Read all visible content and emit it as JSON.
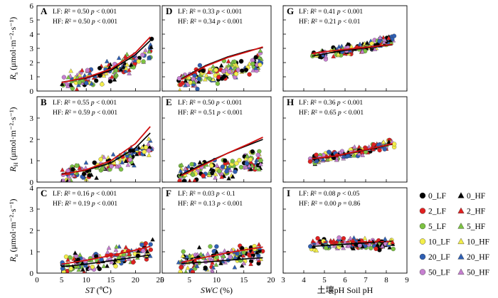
{
  "chart_data": {
    "type": "scatter",
    "layout": {
      "rows": 3,
      "cols": 3
    },
    "row_labels": [
      {
        "symbol": "R",
        "subscript": "s",
        "unit": "(μmol·m⁻²·s⁻¹)",
        "ylim": [
          0,
          6
        ],
        "yticks": [
          0,
          1,
          2,
          3,
          4,
          5,
          6
        ],
        "ytick_labels": [
          "0",
          "1",
          "2",
          "3",
          "4",
          "5",
          "6"
        ]
      },
      {
        "symbol": "R",
        "subscript": "H",
        "unit": "(μmol·m⁻²·s⁻¹)",
        "ylim": [
          0,
          4
        ],
        "yticks": [
          0,
          1,
          2,
          3,
          4
        ],
        "ytick_labels": [
          "0",
          "1",
          "2",
          "3",
          ""
        ]
      },
      {
        "symbol": "R",
        "subscript": "a",
        "unit": "(μmol·m⁻²·s⁻¹)",
        "ylim": [
          0,
          4
        ],
        "yticks": [
          0,
          1,
          2,
          3,
          4
        ],
        "ytick_labels": [
          "0",
          "1",
          "2",
          "3",
          "4"
        ]
      }
    ],
    "columns": [
      {
        "xlabel_main": "ST",
        "xlabel_suffix": " (℃)",
        "xlim": [
          0,
          25
        ],
        "xticks": [
          0,
          5,
          10,
          15,
          20,
          25
        ]
      },
      {
        "xlabel_main": "SWC",
        "xlabel_suffix": " (%)",
        "xlim": [
          0,
          20
        ],
        "xticks": [
          0,
          5,
          10,
          15,
          20
        ]
      },
      {
        "xlabel_main": "",
        "xlabel_suffix": "土壤pH Soil pH",
        "xlim": [
          3,
          9
        ],
        "xticks": [
          3,
          4,
          5,
          6,
          7,
          8,
          9
        ]
      }
    ],
    "panels": [
      {
        "id": "A",
        "row": 0,
        "col": 0,
        "lf": {
          "prefix": "LF: ",
          "r2": "R² = 0.50",
          "p": "p < 0.001"
        },
        "hf": {
          "prefix": "HF: ",
          "r2": "R² = 0.50",
          "p": "p < 0.001"
        },
        "fits": [
          {
            "x": [
              5,
              10,
              15,
              20,
              23
            ],
            "y": [
              0.62,
              0.9,
              1.45,
              2.55,
              3.55
            ],
            "color": "#000000"
          },
          {
            "x": [
              5,
              10,
              15,
              20,
              23
            ],
            "y": [
              0.6,
              0.95,
              1.55,
              2.7,
              3.8
            ],
            "color": "#d01010"
          }
        ],
        "points": {
          "x_range": [
            5,
            23.5
          ],
          "y_base": 0.55,
          "y_exp": 0.09,
          "noise": 1.1
        }
      },
      {
        "id": "D",
        "row": 0,
        "col": 1,
        "lf": {
          "prefix": "LF: ",
          "r2": "R² = 0.33",
          "p": "p < 0.001"
        },
        "hf": {
          "prefix": "HF: ",
          "r2": "R² = 0.34",
          "p": "p < 0.001"
        },
        "fits": [
          {
            "x": [
              3.5,
              8,
              12,
              16,
              18.5
            ],
            "y": [
              0.85,
              1.8,
              2.4,
              2.85,
              3.05
            ],
            "color": "#000000"
          },
          {
            "x": [
              3.5,
              8,
              12,
              16,
              18.5
            ],
            "y": [
              0.8,
              1.75,
              2.35,
              2.8,
              3.1
            ],
            "color": "#d01010"
          }
        ],
        "points": {
          "x_range": [
            3,
            18.5
          ],
          "y_base": 0.7,
          "y_exp": 0.07,
          "noise": 1.2
        }
      },
      {
        "id": "G",
        "row": 0,
        "col": 2,
        "lf": {
          "prefix": "LF: ",
          "r2": "R² = 0.41",
          "p": "p < 0.001"
        },
        "hf": {
          "prefix": "HF: ",
          "r2": "R² = 0.21",
          "p": "p < 0.01"
        },
        "fits": [
          {
            "x": [
              4.4,
              5.5,
              6.5,
              7.5,
              8.3
            ],
            "y": [
              2.45,
              2.75,
              2.95,
              3.1,
              3.25
            ],
            "color": "#000000"
          },
          {
            "x": [
              4.4,
              5.5,
              6.5,
              7.5,
              8.3
            ],
            "y": [
              2.65,
              2.85,
              3.0,
              3.15,
              3.28
            ],
            "color": "#d01010"
          }
        ],
        "points": {
          "x_range": [
            4.3,
            8.4
          ],
          "y_base": 2.4,
          "y_exp": 0.1,
          "noise": 0.6
        }
      },
      {
        "id": "B",
        "row": 1,
        "col": 0,
        "lf": {
          "prefix": "LF: ",
          "r2": "R² = 0.55",
          "p": "p < 0.001"
        },
        "hf": {
          "prefix": "HF: ",
          "r2": "R² = 0.59",
          "p": "p < 0.001"
        },
        "fits": [
          {
            "x": [
              5,
              10,
              15,
              20,
              23
            ],
            "y": [
              0.38,
              0.55,
              0.9,
              1.6,
              2.3
            ],
            "color": "#000000"
          },
          {
            "x": [
              5,
              10,
              15,
              20,
              23
            ],
            "y": [
              0.35,
              0.58,
              1.0,
              1.8,
              2.6
            ],
            "color": "#d01010"
          }
        ],
        "points": {
          "x_range": [
            5,
            23.5
          ],
          "y_base": 0.3,
          "y_exp": 0.095,
          "noise": 0.7
        }
      },
      {
        "id": "E",
        "row": 1,
        "col": 1,
        "lf": {
          "prefix": "LF: ",
          "r2": "R² = 0.50",
          "p": "p < 0.001"
        },
        "hf": {
          "prefix": "HF: ",
          "r2": "R² = 0.51",
          "p": "p < 0.001"
        },
        "fits": [
          {
            "x": [
              3.5,
              8,
              12,
              16,
              18.5
            ],
            "y": [
              0.35,
              0.9,
              1.35,
              1.75,
              2.0
            ],
            "color": "#000000"
          },
          {
            "x": [
              3.5,
              8,
              12,
              16,
              18.5
            ],
            "y": [
              0.3,
              0.85,
              1.35,
              1.8,
              2.1
            ],
            "color": "#d01010"
          }
        ],
        "points": {
          "x_range": [
            3,
            18.5
          ],
          "y_base": 0.3,
          "y_exp": 0.08,
          "noise": 0.8
        }
      },
      {
        "id": "H",
        "row": 1,
        "col": 2,
        "lf": {
          "prefix": "LF: ",
          "r2": "R² = 0.36",
          "p": "p < 0.001"
        },
        "hf": {
          "prefix": "HF: ",
          "r2": "R² = 0.65",
          "p": "p < 0.001"
        },
        "fits": [
          {
            "x": [
              4.4,
              5.5,
              6.5,
              7.5,
              8.3
            ],
            "y": [
              1.08,
              1.2,
              1.4,
              1.6,
              1.78
            ],
            "color": "#000000"
          },
          {
            "x": [
              4.4,
              5.5,
              6.5,
              7.5,
              8.3
            ],
            "y": [
              1.1,
              1.22,
              1.42,
              1.62,
              1.8
            ],
            "color": "#d01010"
          }
        ],
        "points": {
          "x_range": [
            4.3,
            8.4
          ],
          "y_base": 1.0,
          "y_exp": 0.15,
          "noise": 0.35
        }
      },
      {
        "id": "C",
        "row": 2,
        "col": 0,
        "lf": {
          "prefix": "LF: ",
          "r2": "R² = 0.16",
          "p": "p < 0.001"
        },
        "hf": {
          "prefix": "HF: ",
          "r2": "R² = 0.19",
          "p": "p < 0.001"
        },
        "fits": [
          {
            "x": [
              5,
              10,
              15,
              20,
              23
            ],
            "y": [
              0.3,
              0.42,
              0.58,
              0.75,
              0.85
            ],
            "color": "#000000"
          },
          {
            "x": [
              5,
              10,
              15,
              20,
              23
            ],
            "y": [
              0.42,
              0.6,
              0.82,
              1.08,
              1.25
            ],
            "color": "#d01010"
          }
        ],
        "points": {
          "x_range": [
            5,
            23.5
          ],
          "y_base": 0.35,
          "y_exp": 0.06,
          "noise": 0.8
        }
      },
      {
        "id": "F",
        "row": 2,
        "col": 1,
        "lf": {
          "prefix": "LF: ",
          "r2": "R² = 0.03",
          "p": "p < 0.1"
        },
        "hf": {
          "prefix": "HF: ",
          "r2": "R² = 0.13",
          "p": "p < 0.001"
        },
        "fits": [
          {
            "x": [
              3.5,
              8,
              12,
              16,
              18.5
            ],
            "y": [
              0.45,
              0.52,
              0.6,
              0.68,
              0.72
            ],
            "color": "#000000"
          },
          {
            "x": [
              3.5,
              8,
              12,
              16,
              18.5
            ],
            "y": [
              0.5,
              0.75,
              0.95,
              1.12,
              1.22
            ],
            "color": "#d01010"
          }
        ],
        "points": {
          "x_range": [
            3,
            18.5
          ],
          "y_base": 0.45,
          "y_exp": 0.05,
          "noise": 0.9
        }
      },
      {
        "id": "I",
        "row": 2,
        "col": 2,
        "lf": {
          "prefix": "LF: ",
          "r2": "R² = 0.08",
          "p": "p < 0.05"
        },
        "hf": {
          "prefix": "HF: ",
          "r2": "R² = 0.00",
          "p": "p = 0.86"
        },
        "fits": [
          {
            "x": [
              4.4,
              8.3
            ],
            "y": [
              1.25,
              1.5
            ],
            "color": "#000000"
          },
          {
            "x": [
              4.4,
              8.3
            ],
            "y": [
              1.45,
              1.48
            ],
            "color": "#d01010",
            "dashed": true
          }
        ],
        "points": {
          "x_range": [
            4.3,
            8.4
          ],
          "y_base": 1.35,
          "y_exp": 0.0,
          "noise": 0.45
        }
      }
    ],
    "legend": {
      "placement": "right",
      "entries": [
        {
          "label": "0_LF",
          "marker": "circle",
          "color": "#000000"
        },
        {
          "label": "0_HF",
          "marker": "triangle",
          "color": "#000000"
        },
        {
          "label": "2_LF",
          "marker": "circle",
          "color": "#e02020"
        },
        {
          "label": "2_HF",
          "marker": "triangle",
          "color": "#e02020"
        },
        {
          "label": "5_LF",
          "marker": "circle",
          "color": "#7cc242"
        },
        {
          "label": "5_HF",
          "marker": "triangle",
          "color": "#7cc242"
        },
        {
          "label": "10_LF",
          "marker": "circle",
          "color": "#f3ee4a"
        },
        {
          "label": "10_HF",
          "marker": "triangle",
          "color": "#f3ee4a"
        },
        {
          "label": "20_LF",
          "marker": "circle",
          "color": "#2f5fb3"
        },
        {
          "label": "20_HF",
          "marker": "triangle",
          "color": "#2f5fb3"
        },
        {
          "label": "50_LF",
          "marker": "circle",
          "color": "#c67fd0"
        },
        {
          "label": "50_HF",
          "marker": "triangle",
          "color": "#c67fd0"
        }
      ]
    }
  }
}
